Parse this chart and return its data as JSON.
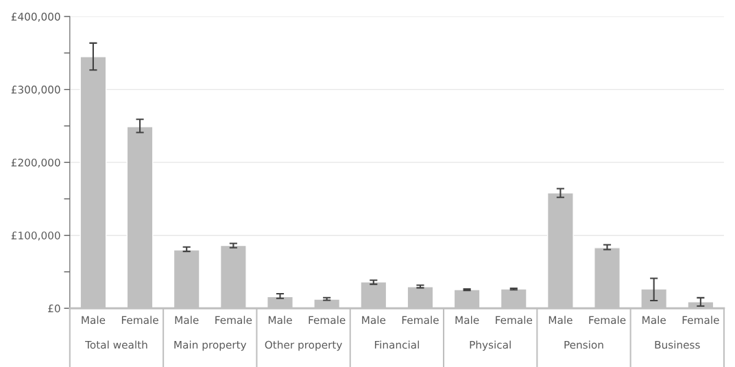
{
  "chart_data": {
    "type": "bar",
    "categories": [
      "Male",
      "Female",
      "Male",
      "Female",
      "Male",
      "Female",
      "Male",
      "Female",
      "Male",
      "Female",
      "Male",
      "Female",
      "Male",
      "Female"
    ],
    "values": [
      345000,
      249000,
      80000,
      86000,
      16000,
      12400,
      36000,
      29500,
      25500,
      26400,
      158000,
      83000,
      26400,
      8900
    ],
    "errors": [
      [
        326600,
        363600
      ],
      [
        241000,
        259000
      ],
      [
        78000,
        84000
      ],
      [
        83000,
        89000
      ],
      [
        13600,
        20000
      ],
      [
        11000,
        14500
      ],
      [
        33000,
        38500
      ],
      [
        28000,
        31700
      ],
      [
        24500,
        26500
      ],
      [
        25400,
        27300
      ],
      [
        152000,
        164000
      ],
      [
        80500,
        87000
      ],
      [
        10600,
        41000
      ],
      [
        3000,
        14400
      ]
    ],
    "color": "#bfbfbf",
    "ylim": [
      0,
      400000
    ],
    "yticks": [
      {
        "value": 0,
        "label": "£0"
      },
      {
        "value": 50000,
        "label": null
      },
      {
        "value": 100000,
        "label": "£100,000"
      },
      {
        "value": 150000,
        "label": null
      },
      {
        "value": 200000,
        "label": "£200,000"
      },
      {
        "value": 250000,
        "label": null
      },
      {
        "value": 300000,
        "label": "£300,000"
      },
      {
        "value": 350000,
        "label": null
      },
      {
        "value": 400000,
        "label": "£400,000"
      }
    ],
    "grid": "y",
    "annotations": [
      "Total wealth",
      "Main property",
      "Other property",
      "Financial",
      "Physical",
      "Pension",
      "Business"
    ]
  }
}
